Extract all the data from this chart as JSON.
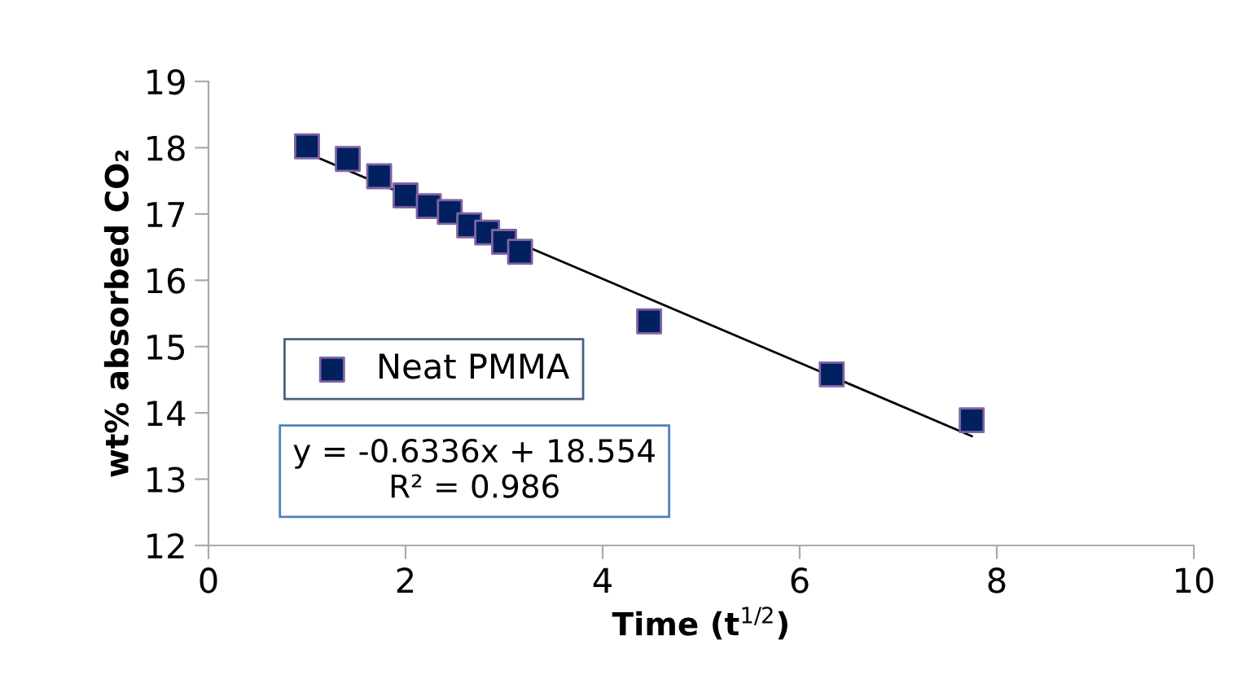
{
  "chart_data": {
    "type": "scatter",
    "xlabel": "Time (t$^{1/2}$)",
    "ylabel": "wt% absorbed CO₂",
    "series": [
      {
        "name": "Neat PMMA",
        "color": "#002060",
        "marker": "square",
        "x": [
          1,
          1.414,
          1.732,
          2,
          2.236,
          2.449,
          2.646,
          2.828,
          3,
          3.162,
          4.472,
          6.325,
          7.746
        ],
        "values": [
          18.02,
          17.83,
          17.57,
          17.28,
          17.12,
          17.03,
          16.83,
          16.72,
          16.58,
          16.43,
          15.38,
          14.58,
          13.89
        ]
      },
      {
        "type": "line",
        "color": "#000000",
        "marker": "none",
        "x": [
          1,
          7.746
        ],
        "values": [
          17.92,
          13.65
        ]
      }
    ],
    "annotations": [
      "y = -0.6336x + 18.554\nR² = 0.986"
    ],
    "xlim": [
      0,
      10
    ],
    "xticks": [
      0,
      2,
      4,
      6,
      8,
      10
    ],
    "ylim": [
      12,
      19
    ],
    "yticks": [
      12,
      13,
      14,
      15,
      16,
      17,
      18,
      19
    ],
    "grid": false,
    "legend": "left"
  }
}
